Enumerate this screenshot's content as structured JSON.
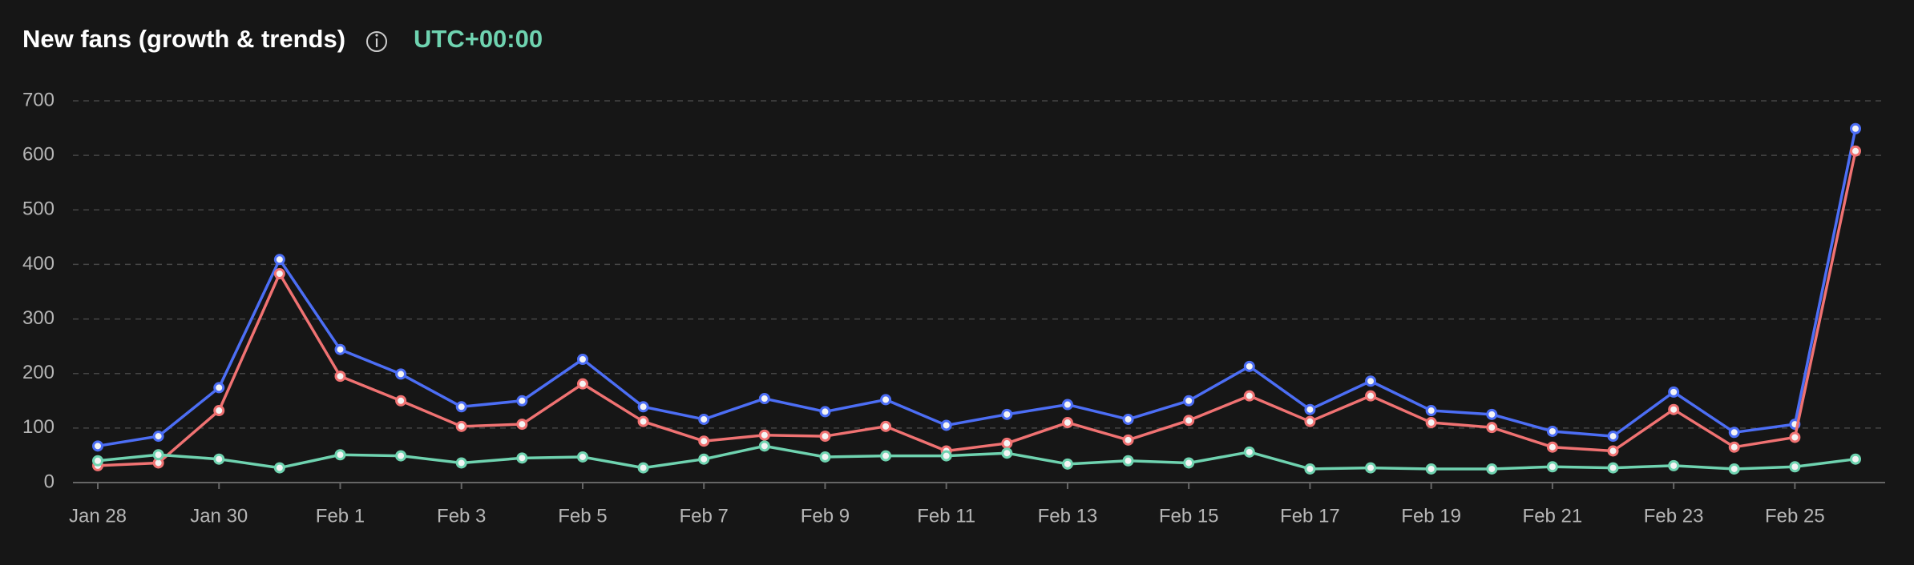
{
  "chart_data": {
    "type": "line",
    "title": "New fans (growth & trends)",
    "annotation": "UTC+00:00",
    "categories": [
      "Jan 28",
      null,
      "Jan 30",
      null,
      "Feb 1",
      null,
      "Feb 3",
      null,
      "Feb 5",
      null,
      "Feb 7",
      null,
      "Feb 9",
      null,
      "Feb 11",
      null,
      "Feb 13",
      null,
      "Feb 15",
      null,
      "Feb 17",
      null,
      "Feb 19",
      null,
      "Feb 21",
      null,
      "Feb 23",
      null,
      "Feb 25",
      null
    ],
    "series": [
      {
        "color": "#4c6ef5",
        "values": [
          67,
          85,
          174,
          409,
          244,
          199,
          139,
          150,
          226,
          139,
          116,
          154,
          130,
          152,
          105,
          125,
          143,
          116,
          150,
          213,
          134,
          186,
          132,
          125,
          94,
          85,
          166,
          92,
          107,
          649
        ]
      },
      {
        "color": "#f07272",
        "values": [
          31,
          36,
          132,
          383,
          195,
          150,
          103,
          107,
          181,
          112,
          76,
          87,
          85,
          103,
          58,
          72,
          110,
          78,
          114,
          159,
          112,
          159,
          110,
          101,
          65,
          58,
          134,
          65,
          83,
          608
        ]
      },
      {
        "color": "#6fd3b0",
        "values": [
          40,
          51,
          43,
          27,
          51,
          49,
          36,
          45,
          47,
          27,
          43,
          67,
          47,
          49,
          49,
          54,
          34,
          40,
          36,
          56,
          25,
          27,
          25,
          25,
          29,
          27,
          31,
          25,
          29,
          43
        ]
      }
    ],
    "ylim": [
      0,
      700
    ],
    "yticks": [
      0,
      100,
      200,
      300,
      400,
      500,
      600,
      700
    ],
    "grid": true
  }
}
